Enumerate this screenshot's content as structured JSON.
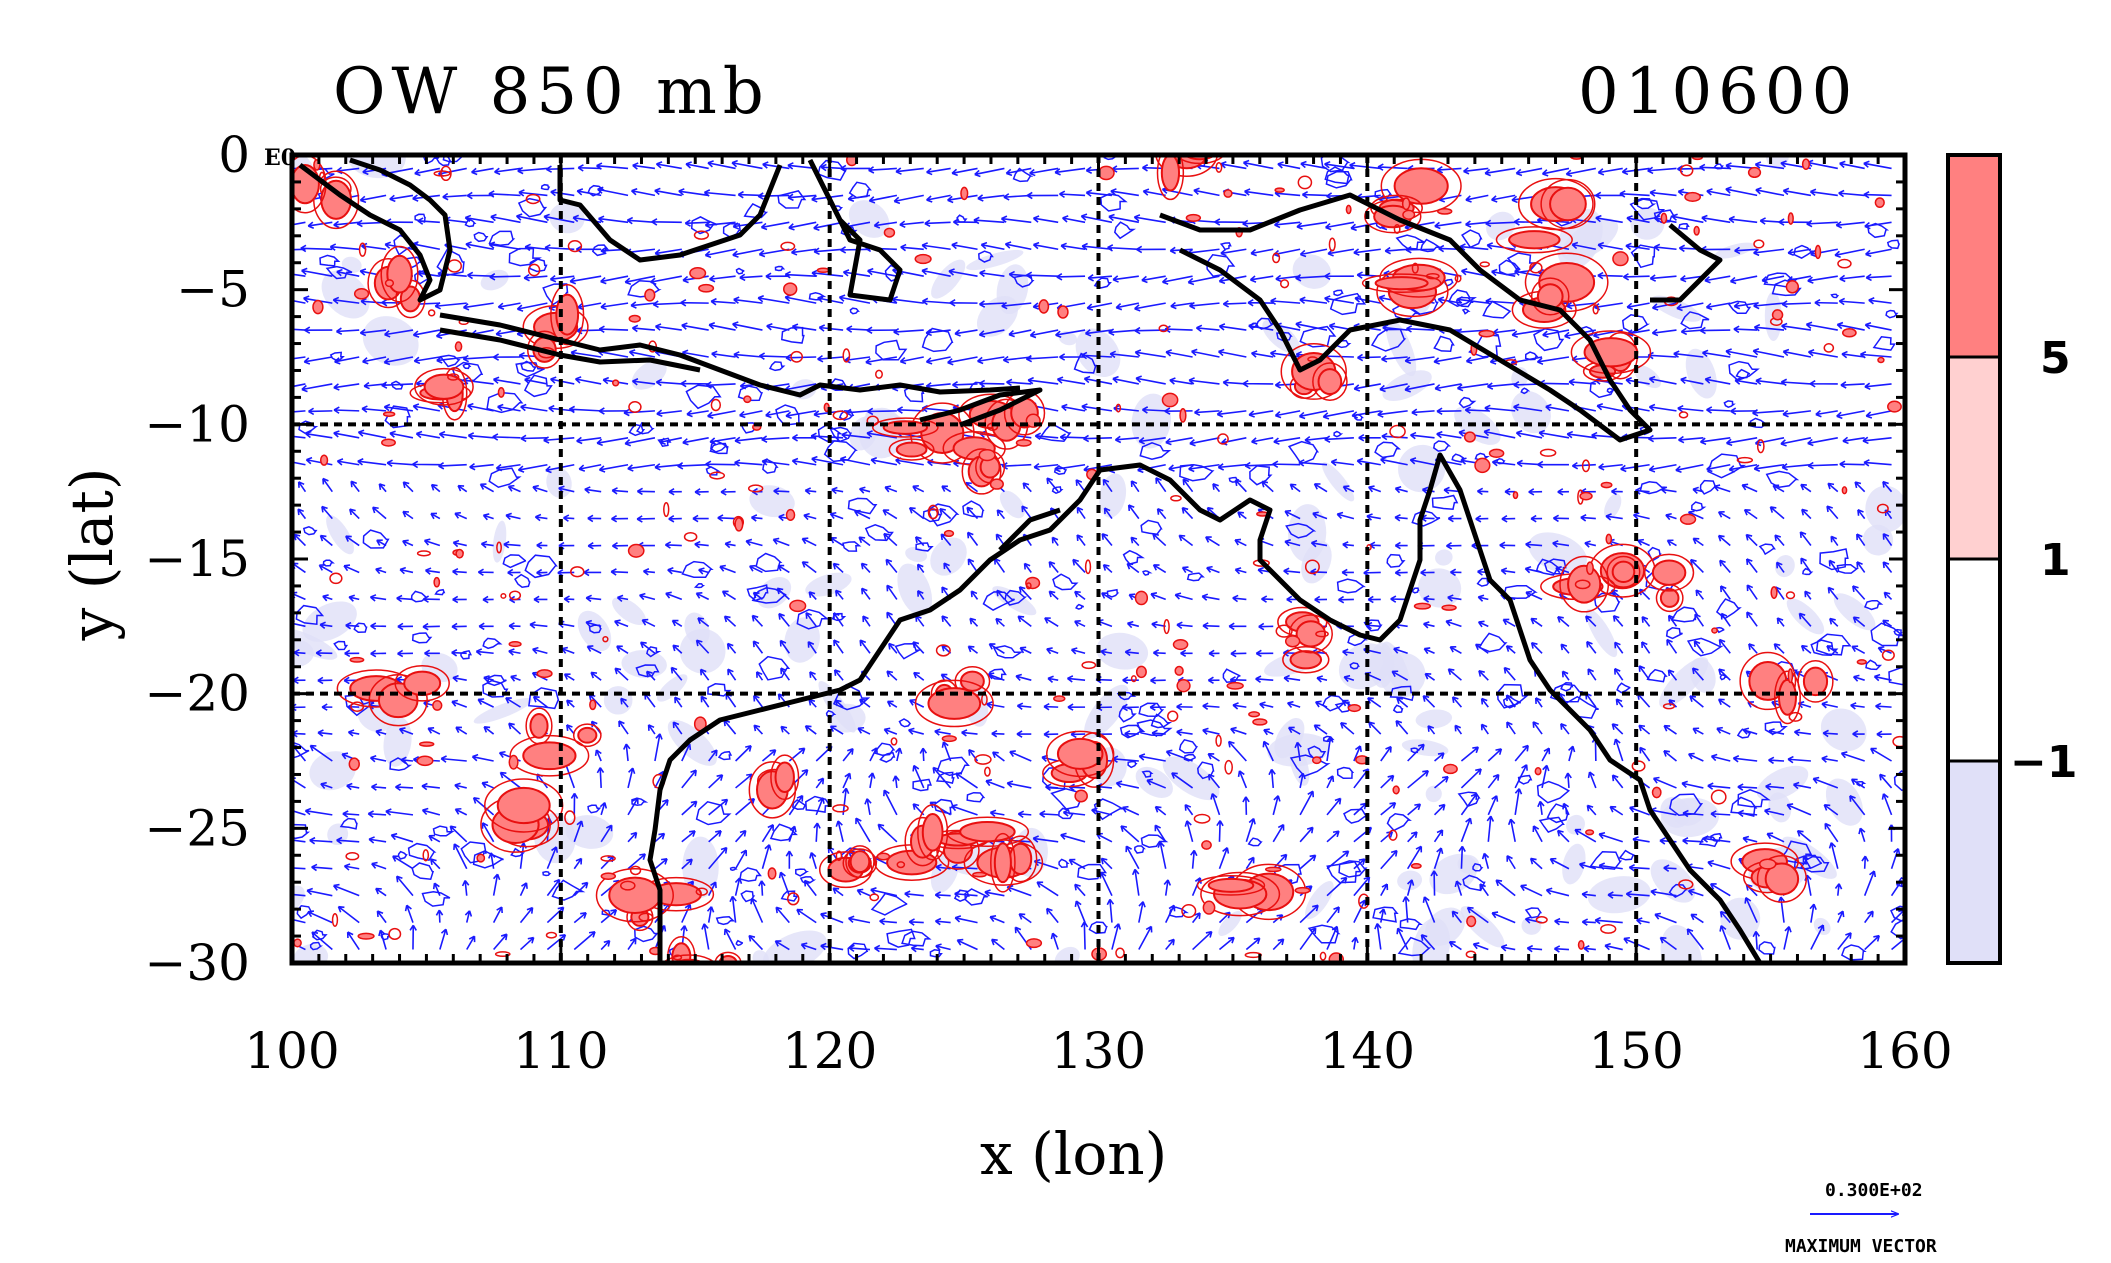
{
  "title_left": "OW 850 mb",
  "title_right": "010600",
  "corner_label": "E0",
  "x_axis": {
    "label": "x (lon)",
    "ticks": [
      "100",
      "110",
      "120",
      "130",
      "140",
      "150",
      "160"
    ],
    "values": [
      100,
      110,
      120,
      130,
      140,
      150,
      160
    ],
    "range": [
      100,
      160
    ]
  },
  "y_axis": {
    "label": "y (lat)",
    "ticks": [
      "0",
      "−5",
      "−10",
      "−15",
      "−20",
      "−25",
      "−30"
    ],
    "values": [
      0,
      -5,
      -10,
      -15,
      -20,
      -25,
      -30
    ],
    "range": [
      -30,
      0
    ]
  },
  "gridlines_lon": [
    110,
    120,
    130,
    140,
    150
  ],
  "gridlines_lat": [
    -10,
    -20
  ],
  "legend": {
    "levels": [
      "5",
      "1",
      "−1"
    ],
    "colors": {
      "high": "#ff8080",
      "mid": "#ffd0d0",
      "neutral": "#ffffff",
      "low": "#e0e0f8"
    }
  },
  "vector_key": {
    "magnitude": "0.300E+02",
    "label": "MAXIMUM VECTOR"
  },
  "colors": {
    "vector": "#1a1aff",
    "contour_pos": "#e81010",
    "coast": "#000000"
  }
}
